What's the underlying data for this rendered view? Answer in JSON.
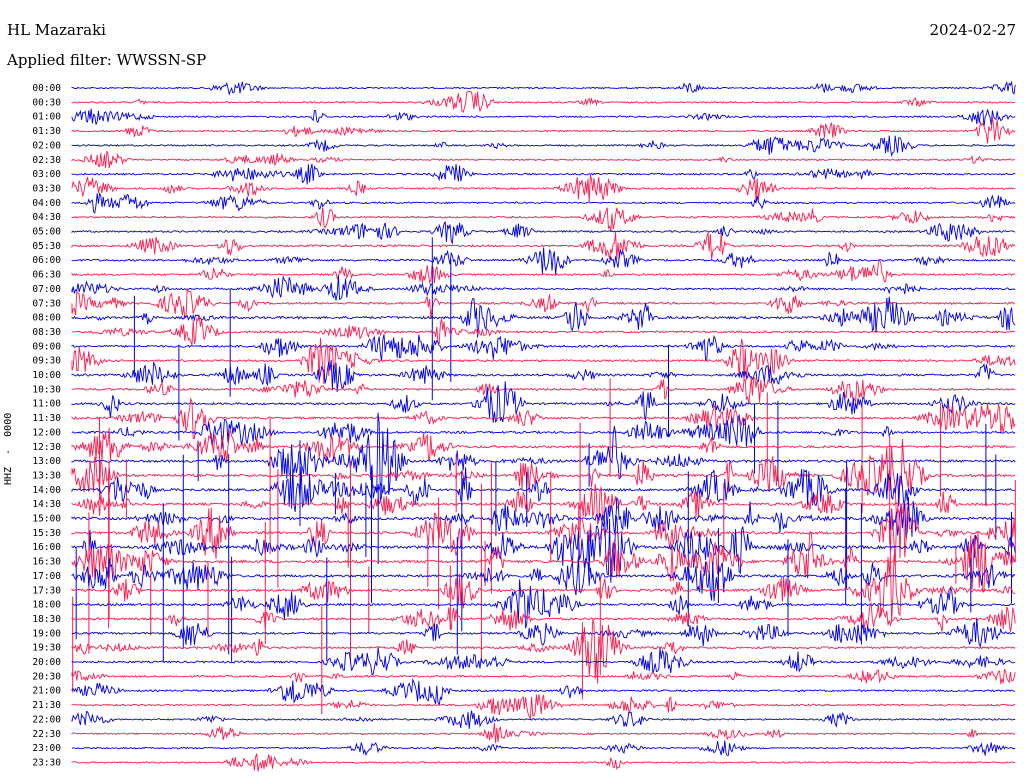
{
  "header": {
    "station": "HL Mazaraki",
    "date": "2024-02-27",
    "filter": "Applied filter: WWSSN-SP"
  },
  "channel_label": "HHZ  -  0000",
  "colors": {
    "blue": "#0000e6",
    "red": "#ff1a4d"
  },
  "chart_data": {
    "type": "line",
    "title": "",
    "xlabel": "",
    "ylabel": "HHZ  -  0000",
    "grid": false,
    "rows": [
      {
        "time": "00:00",
        "color": "blue",
        "activity": 0.15
      },
      {
        "time": "00:30",
        "color": "red",
        "activity": 0.2
      },
      {
        "time": "01:00",
        "color": "blue",
        "activity": 0.2
      },
      {
        "time": "01:30",
        "color": "red",
        "activity": 0.2
      },
      {
        "time": "02:00",
        "color": "blue",
        "activity": 0.25
      },
      {
        "time": "02:30",
        "color": "red",
        "activity": 0.2
      },
      {
        "time": "03:00",
        "color": "blue",
        "activity": 0.3
      },
      {
        "time": "03:30",
        "color": "red",
        "activity": 0.3
      },
      {
        "time": "04:00",
        "color": "blue",
        "activity": 0.25
      },
      {
        "time": "04:30",
        "color": "red",
        "activity": 0.3
      },
      {
        "time": "05:00",
        "color": "blue",
        "activity": 0.35
      },
      {
        "time": "05:30",
        "color": "red",
        "activity": 0.45
      },
      {
        "time": "06:00",
        "color": "blue",
        "activity": 0.4
      },
      {
        "time": "06:30",
        "color": "red",
        "activity": 0.35
      },
      {
        "time": "07:00",
        "color": "blue",
        "activity": 0.4
      },
      {
        "time": "07:30",
        "color": "red",
        "activity": 0.5
      },
      {
        "time": "08:00",
        "color": "blue",
        "activity": 0.75
      },
      {
        "time": "08:30",
        "color": "red",
        "activity": 0.45
      },
      {
        "time": "09:00",
        "color": "blue",
        "activity": 0.5
      },
      {
        "time": "09:30",
        "color": "red",
        "activity": 0.45
      },
      {
        "time": "10:00",
        "color": "blue",
        "activity": 0.55
      },
      {
        "time": "10:30",
        "color": "red",
        "activity": 0.5
      },
      {
        "time": "11:00",
        "color": "blue",
        "activity": 0.5
      },
      {
        "time": "11:30",
        "color": "red",
        "activity": 0.55
      },
      {
        "time": "12:00",
        "color": "blue",
        "activity": 0.55
      },
      {
        "time": "12:30",
        "color": "red",
        "activity": 0.65
      },
      {
        "time": "13:00",
        "color": "blue",
        "activity": 0.7
      },
      {
        "time": "13:30",
        "color": "red",
        "activity": 0.8
      },
      {
        "time": "14:00",
        "color": "blue",
        "activity": 0.75
      },
      {
        "time": "14:30",
        "color": "red",
        "activity": 0.8
      },
      {
        "time": "15:00",
        "color": "blue",
        "activity": 0.85
      },
      {
        "time": "15:30",
        "color": "red",
        "activity": 0.85
      },
      {
        "time": "16:00",
        "color": "blue",
        "activity": 1.0
      },
      {
        "time": "16:30",
        "color": "red",
        "activity": 1.0
      },
      {
        "time": "17:00",
        "color": "blue",
        "activity": 0.8
      },
      {
        "time": "17:30",
        "color": "red",
        "activity": 0.7
      },
      {
        "time": "18:00",
        "color": "blue",
        "activity": 0.6
      },
      {
        "time": "18:30",
        "color": "red",
        "activity": 0.6
      },
      {
        "time": "19:00",
        "color": "blue",
        "activity": 0.5
      },
      {
        "time": "19:30",
        "color": "red",
        "activity": 0.55
      },
      {
        "time": "20:00",
        "color": "blue",
        "activity": 0.45
      },
      {
        "time": "20:30",
        "color": "red",
        "activity": 0.35
      },
      {
        "time": "21:00",
        "color": "blue",
        "activity": 0.3
      },
      {
        "time": "21:30",
        "color": "red",
        "activity": 0.3
      },
      {
        "time": "22:00",
        "color": "blue",
        "activity": 0.2
      },
      {
        "time": "22:30",
        "color": "red",
        "activity": 0.2
      },
      {
        "time": "23:00",
        "color": "blue",
        "activity": 0.15
      },
      {
        "time": "23:30",
        "color": "red",
        "activity": 0.15
      }
    ]
  }
}
